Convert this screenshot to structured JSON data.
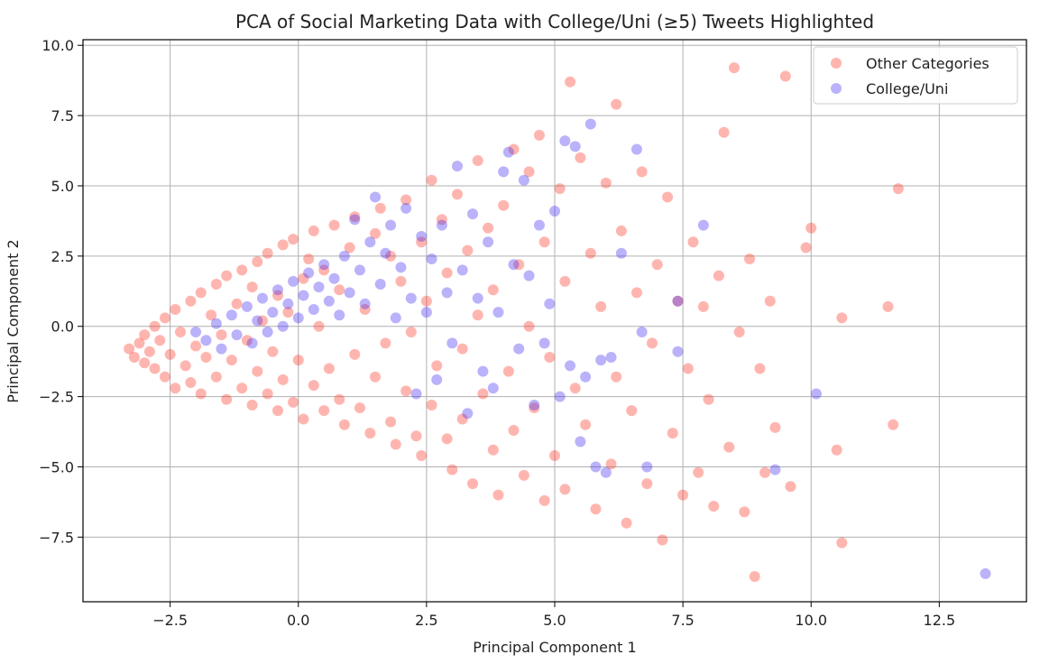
{
  "chart_data": {
    "type": "scatter",
    "title": "PCA of Social Marketing Data with College/Uni (≥5) Tweets Highlighted",
    "xlabel": "Principal Component 1",
    "ylabel": "Principal Component 2",
    "xlim": [
      -4.2,
      14.2
    ],
    "ylim": [
      -9.8,
      10.2
    ],
    "x_ticks": [
      -2.5,
      0.0,
      2.5,
      5.0,
      7.5,
      10.0,
      12.5
    ],
    "x_tick_labels": [
      "−2.5",
      "0.0",
      "2.5",
      "5.0",
      "7.5",
      "10.0",
      "12.5"
    ],
    "y_ticks": [
      -7.5,
      -5.0,
      -2.5,
      0.0,
      2.5,
      5.0,
      7.5,
      10.0
    ],
    "y_tick_labels": [
      "−7.5",
      "−5.0",
      "−2.5",
      "0.0",
      "2.5",
      "5.0",
      "7.5",
      "10.0"
    ],
    "grid": true,
    "legend_position": "top-right",
    "series": [
      {
        "name": "Other Categories",
        "color": "#ff2a1a",
        "alpha": 0.35,
        "points": [
          [
            -3.3,
            -0.8
          ],
          [
            -3.2,
            -1.1
          ],
          [
            -3.1,
            -0.6
          ],
          [
            -3.0,
            -1.3
          ],
          [
            -3.0,
            -0.3
          ],
          [
            -2.9,
            -0.9
          ],
          [
            -2.8,
            -1.5
          ],
          [
            -2.8,
            0.0
          ],
          [
            -2.7,
            -0.5
          ],
          [
            -2.6,
            -1.8
          ],
          [
            -2.6,
            0.3
          ],
          [
            -2.5,
            -1.0
          ],
          [
            -2.4,
            -2.2
          ],
          [
            -2.4,
            0.6
          ],
          [
            -2.3,
            -0.2
          ],
          [
            -2.2,
            -1.4
          ],
          [
            -2.1,
            0.9
          ],
          [
            -2.1,
            -2.0
          ],
          [
            -2.0,
            -0.7
          ],
          [
            -1.9,
            1.2
          ],
          [
            -1.9,
            -2.4
          ],
          [
            -1.8,
            -1.1
          ],
          [
            -1.7,
            0.4
          ],
          [
            -1.6,
            1.5
          ],
          [
            -1.6,
            -1.8
          ],
          [
            -1.5,
            -0.3
          ],
          [
            -1.4,
            -2.6
          ],
          [
            -1.4,
            1.8
          ],
          [
            -1.3,
            -1.2
          ],
          [
            -1.2,
            0.8
          ],
          [
            -1.1,
            2.0
          ],
          [
            -1.1,
            -2.2
          ],
          [
            -1.0,
            -0.5
          ],
          [
            -0.9,
            1.4
          ],
          [
            -0.9,
            -2.8
          ],
          [
            -0.8,
            2.3
          ],
          [
            -0.8,
            -1.6
          ],
          [
            -0.7,
            0.2
          ],
          [
            -0.6,
            -2.4
          ],
          [
            -0.6,
            2.6
          ],
          [
            -0.5,
            -0.9
          ],
          [
            -0.4,
            1.1
          ],
          [
            -0.4,
            -3.0
          ],
          [
            -0.3,
            2.9
          ],
          [
            -0.3,
            -1.9
          ],
          [
            -0.2,
            0.5
          ],
          [
            -0.1,
            -2.7
          ],
          [
            -0.1,
            3.1
          ],
          [
            0.0,
            -1.2
          ],
          [
            0.1,
            1.7
          ],
          [
            0.1,
            -3.3
          ],
          [
            0.2,
            2.4
          ],
          [
            0.3,
            -2.1
          ],
          [
            0.3,
            3.4
          ],
          [
            0.4,
            0.0
          ],
          [
            0.5,
            -3.0
          ],
          [
            0.5,
            2.0
          ],
          [
            0.6,
            -1.5
          ],
          [
            0.7,
            3.6
          ],
          [
            0.8,
            -2.6
          ],
          [
            0.8,
            1.3
          ],
          [
            0.9,
            -3.5
          ],
          [
            1.0,
            2.8
          ],
          [
            1.1,
            -1.0
          ],
          [
            1.1,
            3.9
          ],
          [
            1.2,
            -2.9
          ],
          [
            1.3,
            0.6
          ],
          [
            1.4,
            -3.8
          ],
          [
            1.5,
            3.3
          ],
          [
            1.5,
            -1.8
          ],
          [
            1.6,
            4.2
          ],
          [
            1.7,
            -0.6
          ],
          [
            1.8,
            -3.4
          ],
          [
            1.8,
            2.5
          ],
          [
            1.9,
            -4.2
          ],
          [
            2.0,
            1.6
          ],
          [
            2.1,
            -2.3
          ],
          [
            2.1,
            4.5
          ],
          [
            2.2,
            -0.2
          ],
          [
            2.3,
            -3.9
          ],
          [
            2.4,
            3.0
          ],
          [
            2.4,
            -4.6
          ],
          [
            2.5,
            0.9
          ],
          [
            2.6,
            -2.8
          ],
          [
            2.6,
            5.2
          ],
          [
            2.7,
            -1.4
          ],
          [
            2.8,
            3.8
          ],
          [
            2.9,
            -4.0
          ],
          [
            2.9,
            1.9
          ],
          [
            3.0,
            -5.1
          ],
          [
            3.1,
            4.7
          ],
          [
            3.2,
            -0.8
          ],
          [
            3.2,
            -3.3
          ],
          [
            3.3,
            2.7
          ],
          [
            3.4,
            -5.6
          ],
          [
            3.5,
            0.4
          ],
          [
            3.5,
            5.9
          ],
          [
            3.6,
            -2.4
          ],
          [
            3.7,
            3.5
          ],
          [
            3.8,
            -4.4
          ],
          [
            3.8,
            1.3
          ],
          [
            3.9,
            -6.0
          ],
          [
            4.0,
            4.3
          ],
          [
            4.1,
            -1.6
          ],
          [
            4.2,
            6.3
          ],
          [
            4.2,
            -3.7
          ],
          [
            4.3,
            2.2
          ],
          [
            4.4,
            -5.3
          ],
          [
            4.5,
            0.0
          ],
          [
            4.5,
            5.5
          ],
          [
            4.6,
            -2.9
          ],
          [
            4.7,
            6.8
          ],
          [
            4.8,
            -6.2
          ],
          [
            4.8,
            3.0
          ],
          [
            4.9,
            -1.1
          ],
          [
            5.0,
            -4.6
          ],
          [
            5.1,
            4.9
          ],
          [
            5.2,
            1.6
          ],
          [
            5.2,
            -5.8
          ],
          [
            5.3,
            8.7
          ],
          [
            5.4,
            -2.2
          ],
          [
            5.5,
            6.0
          ],
          [
            5.6,
            -3.5
          ],
          [
            5.7,
            2.6
          ],
          [
            5.8,
            -6.5
          ],
          [
            5.9,
            0.7
          ],
          [
            6.0,
            5.1
          ],
          [
            6.1,
            -4.9
          ],
          [
            6.2,
            -1.8
          ],
          [
            6.2,
            7.9
          ],
          [
            6.3,
            3.4
          ],
          [
            6.4,
            -7.0
          ],
          [
            6.5,
            -3.0
          ],
          [
            6.6,
            1.2
          ],
          [
            6.7,
            5.5
          ],
          [
            6.8,
            -5.6
          ],
          [
            6.9,
            -0.6
          ],
          [
            7.0,
            2.2
          ],
          [
            7.1,
            -7.6
          ],
          [
            7.2,
            4.6
          ],
          [
            7.3,
            -3.8
          ],
          [
            7.4,
            0.9
          ],
          [
            7.5,
            -6.0
          ],
          [
            7.6,
            -1.5
          ],
          [
            7.7,
            3.0
          ],
          [
            7.8,
            -5.2
          ],
          [
            7.9,
            0.7
          ],
          [
            8.0,
            -2.6
          ],
          [
            8.1,
            -6.4
          ],
          [
            8.2,
            1.8
          ],
          [
            8.3,
            6.9
          ],
          [
            8.4,
            -4.3
          ],
          [
            8.5,
            9.2
          ],
          [
            8.6,
            -0.2
          ],
          [
            8.7,
            -6.6
          ],
          [
            8.8,
            2.4
          ],
          [
            8.9,
            -8.9
          ],
          [
            9.0,
            -1.5
          ],
          [
            9.1,
            -5.2
          ],
          [
            9.2,
            0.9
          ],
          [
            9.3,
            -3.6
          ],
          [
            9.5,
            8.9
          ],
          [
            9.6,
            -5.7
          ],
          [
            9.9,
            2.8
          ],
          [
            10.0,
            3.5
          ],
          [
            10.5,
            -4.4
          ],
          [
            10.6,
            0.3
          ],
          [
            10.6,
            -7.7
          ],
          [
            11.5,
            0.7
          ],
          [
            11.6,
            -3.5
          ],
          [
            11.7,
            4.9
          ]
        ]
      },
      {
        "name": "College/Uni",
        "color": "#3a22f0",
        "alpha": 0.35,
        "points": [
          [
            -2.0,
            -0.2
          ],
          [
            -1.8,
            -0.5
          ],
          [
            -1.6,
            0.1
          ],
          [
            -1.5,
            -0.8
          ],
          [
            -1.3,
            0.4
          ],
          [
            -1.2,
            -0.3
          ],
          [
            -1.0,
            0.7
          ],
          [
            -0.9,
            -0.6
          ],
          [
            -0.8,
            0.2
          ],
          [
            -0.7,
            1.0
          ],
          [
            -0.6,
            -0.2
          ],
          [
            -0.5,
            0.5
          ],
          [
            -0.4,
            1.3
          ],
          [
            -0.3,
            0.0
          ],
          [
            -0.2,
            0.8
          ],
          [
            -0.1,
            1.6
          ],
          [
            0.0,
            0.3
          ],
          [
            0.1,
            1.1
          ],
          [
            0.2,
            1.9
          ],
          [
            0.3,
            0.6
          ],
          [
            0.4,
            1.4
          ],
          [
            0.5,
            2.2
          ],
          [
            0.6,
            0.9
          ],
          [
            0.7,
            1.7
          ],
          [
            0.8,
            0.4
          ],
          [
            0.9,
            2.5
          ],
          [
            1.0,
            1.2
          ],
          [
            1.1,
            3.8
          ],
          [
            1.2,
            2.0
          ],
          [
            1.3,
            0.8
          ],
          [
            1.4,
            3.0
          ],
          [
            1.5,
            4.6
          ],
          [
            1.6,
            1.5
          ],
          [
            1.7,
            2.6
          ],
          [
            1.8,
            3.6
          ],
          [
            1.9,
            0.3
          ],
          [
            2.0,
            2.1
          ],
          [
            2.1,
            4.2
          ],
          [
            2.2,
            1.0
          ],
          [
            2.3,
            -2.4
          ],
          [
            2.4,
            3.2
          ],
          [
            2.5,
            0.5
          ],
          [
            2.6,
            2.4
          ],
          [
            2.7,
            -1.9
          ],
          [
            2.8,
            3.6
          ],
          [
            2.9,
            1.2
          ],
          [
            3.0,
            -0.6
          ],
          [
            3.1,
            5.7
          ],
          [
            3.2,
            2.0
          ],
          [
            3.3,
            -3.1
          ],
          [
            3.4,
            4.0
          ],
          [
            3.5,
            1.0
          ],
          [
            3.6,
            -1.6
          ],
          [
            3.7,
            3.0
          ],
          [
            3.8,
            -2.2
          ],
          [
            3.9,
            0.5
          ],
          [
            4.0,
            5.5
          ],
          [
            4.1,
            6.2
          ],
          [
            4.2,
            2.2
          ],
          [
            4.3,
            -0.8
          ],
          [
            4.4,
            5.2
          ],
          [
            4.5,
            1.8
          ],
          [
            4.6,
            -2.8
          ],
          [
            4.7,
            3.6
          ],
          [
            4.8,
            -0.6
          ],
          [
            4.9,
            0.8
          ],
          [
            5.0,
            4.1
          ],
          [
            5.1,
            -2.5
          ],
          [
            5.2,
            6.6
          ],
          [
            5.3,
            -1.4
          ],
          [
            5.4,
            6.4
          ],
          [
            5.5,
            -4.1
          ],
          [
            5.6,
            -1.8
          ],
          [
            5.7,
            7.2
          ],
          [
            5.8,
            -5.0
          ],
          [
            5.9,
            -1.2
          ],
          [
            6.0,
            -5.2
          ],
          [
            6.1,
            -1.1
          ],
          [
            6.3,
            2.6
          ],
          [
            6.6,
            6.3
          ],
          [
            6.7,
            -0.2
          ],
          [
            6.8,
            -5.0
          ],
          [
            7.4,
            -0.9
          ],
          [
            7.4,
            0.9
          ],
          [
            7.9,
            3.6
          ],
          [
            9.3,
            -5.1
          ],
          [
            10.1,
            -2.4
          ],
          [
            13.4,
            -8.8
          ]
        ]
      }
    ]
  }
}
